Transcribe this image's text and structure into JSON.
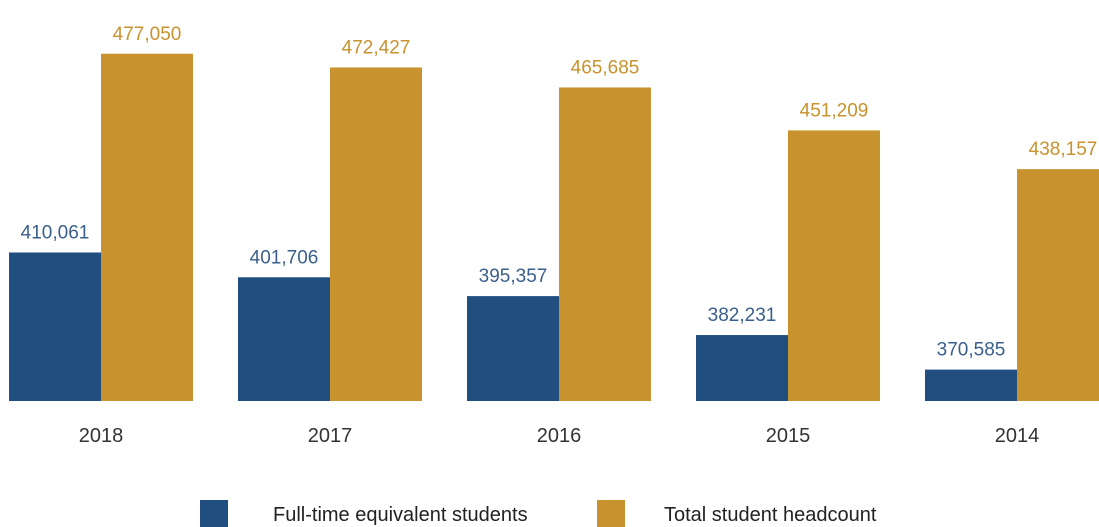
{
  "chart_data": {
    "type": "bar",
    "title": "",
    "xlabel": "",
    "ylabel": "",
    "categories": [
      "2018",
      "2017",
      "2016",
      "2015",
      "2014"
    ],
    "series": [
      {
        "name": "Full-time equivalent students",
        "color": "#1f4e7f",
        "label_color": "#3a5f8c",
        "values": [
          410061,
          401706,
          395357,
          382231,
          370585
        ],
        "labels": [
          "410,061",
          "401,706",
          "395,357",
          "382,231",
          "370,585"
        ]
      },
      {
        "name": "Total student headcount",
        "color": "#c8922e",
        "label_color": "#c8922e",
        "values": [
          477050,
          472427,
          465685,
          451209,
          438157
        ],
        "labels": [
          "477,050",
          "472,427",
          "465,685",
          "451,209",
          "438,157"
        ]
      }
    ],
    "ylim": [
      360000,
      480000
    ],
    "grid": false,
    "legend_position": "bottom"
  }
}
